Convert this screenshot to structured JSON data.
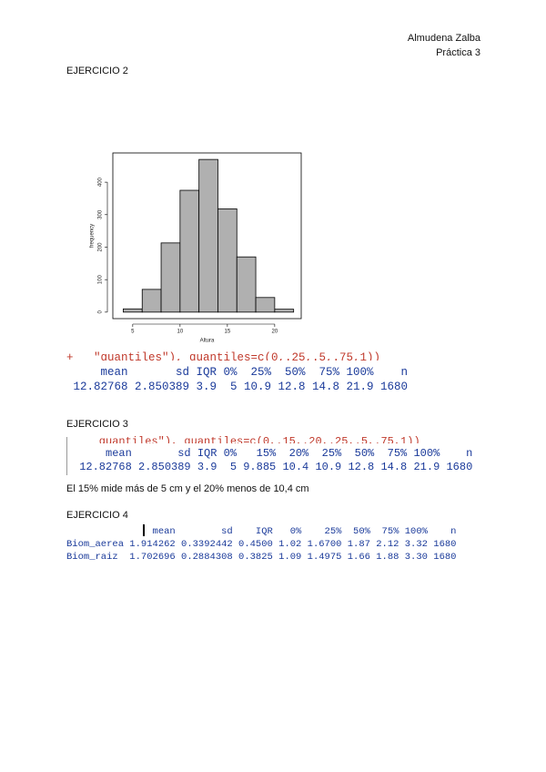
{
  "header": {
    "author": "Almudena Zalba",
    "subtitle": "Práctica 3"
  },
  "sections": [
    {
      "title": "EJERCICIO 2",
      "code": "+   \"quantiles\"), quantiles=c(0,.25,.5,.75,1))",
      "output": [
        "     mean       sd IQR 0%  25%  50%  75% 100%    n",
        " 12.82768 2.850389 3.9  5 10.9 12.8 14.8 21.9 1680"
      ]
    },
    {
      "title": "EJERCICIO 3",
      "code": "    quantiles\"), quantiles=c(0,.15,.20,.25,.5,.75,1))",
      "output": [
        "     mean       sd IQR 0%   15%  20%  25%  50%  75% 100%    n",
        " 12.82768 2.850389 3.9  5 9.885 10.4 10.9 12.8 14.8 21.9 1680"
      ],
      "note": "El 15% mide más de 5 cm y el 20% menos de 10,4 cm"
    },
    {
      "title": "EJERCICIO 4",
      "output": [
        "               mean        sd    IQR   0%    25%  50%  75% 100%    n",
        "Biom_aerea 1.914262 0.3392442 0.4500 1.02 1.6700 1.87 2.12 3.32 1680",
        "Biom_raiz  1.702696 0.2884308 0.3825 1.09 1.4975 1.66 1.88 3.30 1680"
      ]
    }
  ],
  "chart_data": {
    "type": "histogram",
    "xlabel": "Altura",
    "ylabel": "frequency",
    "bins": [
      4,
      6,
      8,
      10,
      12,
      14,
      16,
      18,
      20,
      22
    ],
    "values": [
      10,
      70,
      213,
      375,
      470,
      318,
      170,
      45,
      9
    ],
    "color": "#b0b0b0",
    "xlim": [
      2.9,
      22.8
    ],
    "ylim": [
      -20,
      490
    ],
    "xticks": [
      5,
      10,
      15,
      20
    ],
    "yticks": [
      0,
      100,
      200,
      300,
      400
    ]
  }
}
